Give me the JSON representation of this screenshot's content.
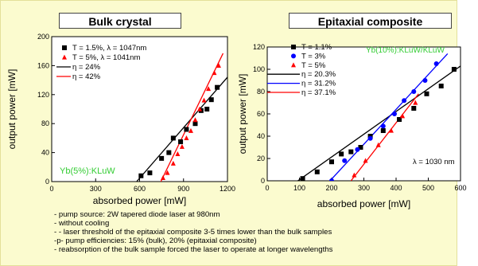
{
  "background_color": "#fbfbcf",
  "chart_data": [
    {
      "type": "scatter",
      "title": "Bulk crystal",
      "xlabel": "absorbed power [mW]",
      "ylabel": "output power [mW]",
      "xlim": [
        0,
        1200
      ],
      "ylim": [
        0,
        200
      ],
      "xticks": [
        0,
        300,
        600,
        900,
        1200
      ],
      "yticks": [
        0,
        40,
        80,
        120,
        160,
        200
      ],
      "annotation": "Yb(5%):KLuW",
      "annotation_color": "#33cc33",
      "legend_position": "top-left",
      "series": [
        {
          "name": "T = 1.5%,  λ = 1047nm",
          "marker": "square",
          "color": "#000000",
          "x": [
            610,
            670,
            750,
            800,
            830,
            880,
            920,
            980,
            1020,
            1060,
            1090,
            1130
          ],
          "y": [
            8,
            12,
            32,
            40,
            60,
            55,
            72,
            80,
            98,
            100,
            113,
            130
          ]
        },
        {
          "name": "T = 5%,     λ = 1041nm",
          "marker": "triangle",
          "color": "#ff0000",
          "x": [
            760,
            790,
            830,
            860,
            890,
            920,
            950,
            980,
            1010,
            1040,
            1070,
            1110,
            1140
          ],
          "y": [
            5,
            12,
            25,
            38,
            48,
            60,
            70,
            85,
            100,
            112,
            128,
            150,
            160
          ]
        }
      ],
      "fit_lines": [
        {
          "name": "η = 24%",
          "color": "#000000",
          "x": [
            580,
            1200
          ],
          "y": [
            0,
            144
          ]
        },
        {
          "name": "η = 42%",
          "color": "#ff0000",
          "x": [
            745,
            1170
          ],
          "y": [
            0,
            177
          ]
        }
      ]
    },
    {
      "type": "scatter",
      "title": "Epitaxial composite",
      "xlabel": "absorbed power [mW]",
      "ylabel": "output power [mW]",
      "xlim": [
        0,
        600
      ],
      "ylim": [
        0,
        120
      ],
      "xticks": [
        0,
        100,
        200,
        300,
        400,
        500,
        600
      ],
      "yticks": [
        0,
        20,
        40,
        60,
        80,
        100,
        120
      ],
      "annotation": "Yb(10%):KLuW/KLuW",
      "annotation_color": "#33cc33",
      "annotation2": "λ = 1030 nm",
      "legend_position": "top-left",
      "series": [
        {
          "name": "T = 1.1%",
          "marker": "square",
          "color": "#000000",
          "x": [
            110,
            155,
            200,
            230,
            260,
            290,
            320,
            360,
            410,
            455,
            495,
            540,
            580
          ],
          "y": [
            2,
            8,
            17,
            24,
            26,
            30,
            40,
            45,
            55,
            65,
            78,
            85,
            100
          ]
        },
        {
          "name": "T = 3%",
          "marker": "circle",
          "color": "#0000ff",
          "x": [
            200,
            240,
            280,
            320,
            360,
            395,
            425,
            455,
            490,
            525
          ],
          "y": [
            0,
            18,
            28,
            38,
            49,
            60,
            72,
            80,
            90,
            105
          ]
        },
        {
          "name": "T = 5%",
          "marker": "triangle",
          "color": "#ff0000",
          "x": [
            270,
            305,
            345,
            385,
            420,
            460
          ],
          "y": [
            5,
            18,
            32,
            45,
            58,
            70
          ]
        }
      ],
      "fit_lines": [
        {
          "name": "η = 20.3%",
          "color": "#000000",
          "x": [
            95,
            620
          ],
          "y": [
            0,
            107
          ]
        },
        {
          "name": "η = 31.2%",
          "color": "#0000ff",
          "x": [
            195,
            560
          ],
          "y": [
            0,
            114
          ]
        },
        {
          "name": "η = 37.1%",
          "color": "#ff0000",
          "x": [
            260,
            470
          ],
          "y": [
            0,
            78
          ]
        }
      ]
    }
  ],
  "notes": [
    "- pump source: 2W tapered diode laser at 980nm",
    "- without cooling",
    "- - laser threshold of the epitaxial composite 3-5 times lower than the bulk samples",
    "-p- pump efficiencies: 15% (bulk), 20% (epitaxial composite)",
    "- reabsorption of the bulk sample forced the laser to operate at longer wavelengths"
  ]
}
